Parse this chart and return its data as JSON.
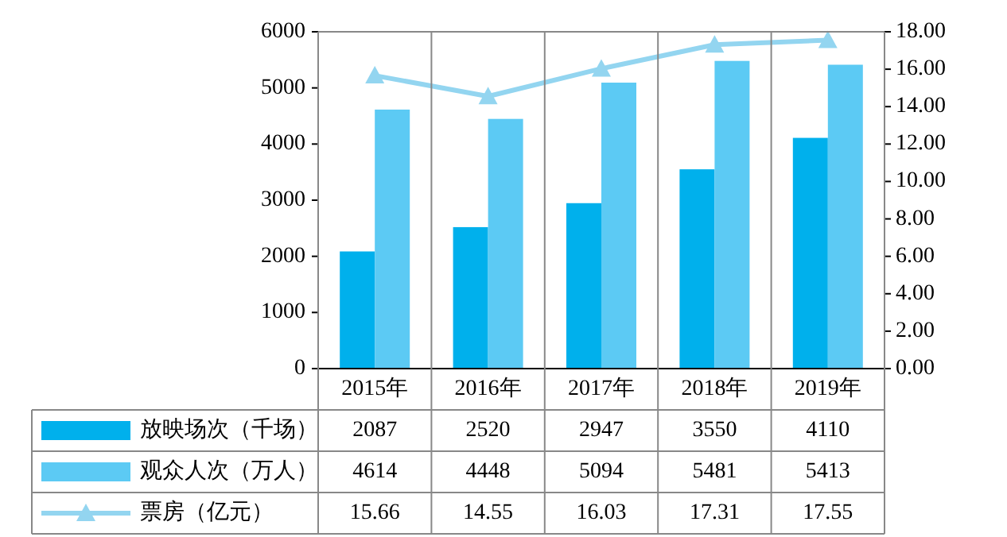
{
  "chart_data": {
    "type": "bar",
    "categories": [
      "2015年",
      "2016年",
      "2017年",
      "2018年",
      "2019年"
    ],
    "series": [
      {
        "name": "放映场次（千场）",
        "color": "#00b0ec",
        "values": [
          2087,
          2520,
          2947,
          3550,
          4110
        ]
      },
      {
        "name": "观众人次（万人）",
        "color": "#5ccaf4",
        "values": [
          4614,
          4448,
          5094,
          5481,
          5413
        ]
      },
      {
        "name": "票房（亿元）",
        "type": "line",
        "axis": "y2",
        "color": "#93d5f0",
        "values": [
          15.66,
          14.55,
          16.03,
          17.31,
          17.55
        ]
      }
    ],
    "ylim": [
      0,
      6000
    ],
    "yticks": [
      0,
      1000,
      2000,
      3000,
      4000,
      5000,
      6000
    ],
    "y2lim": [
      0,
      18
    ],
    "y2ticks": [
      {
        "value": 0,
        "label": "0.00"
      },
      {
        "value": 2,
        "label": "2.00"
      },
      {
        "value": 4,
        "label": "4.00"
      },
      {
        "value": 6,
        "label": "6.00"
      },
      {
        "value": 8,
        "label": "8.00"
      },
      {
        "value": 10,
        "label": "10.00"
      },
      {
        "value": 12,
        "label": "12.00"
      },
      {
        "value": 14,
        "label": "14.00"
      },
      {
        "value": 16,
        "label": "16.00"
      },
      {
        "value": 18,
        "label": "18.00"
      }
    ],
    "marker": "triangle",
    "data_labels": true,
    "legend": "bottom left",
    "grid": false
  }
}
